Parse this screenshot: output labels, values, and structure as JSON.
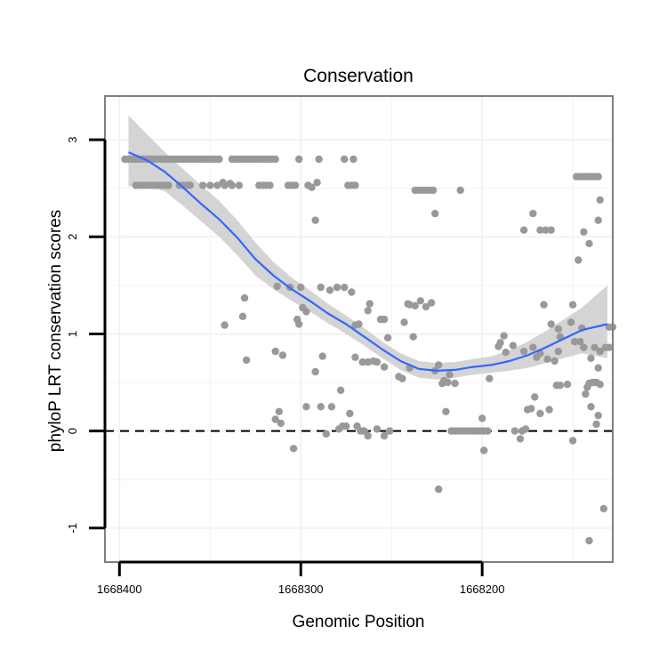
{
  "chart_data": {
    "type": "scatter",
    "title": "Conservation",
    "xlabel": "Genomic Position",
    "ylabel": "phyloP LRT conservation scores",
    "x_reversed": true,
    "xlim": [
      1668408,
      1668128
    ],
    "ylim": [
      -1.35,
      3.45
    ],
    "x_ticks": [
      1668400,
      1668300,
      1668200
    ],
    "y_ticks": [
      -1,
      0,
      1,
      2,
      3
    ],
    "x_tick_labels": [
      "1668400",
      "1668300",
      "1668200"
    ],
    "y_tick_labels": [
      "-1",
      "0",
      "1",
      "2",
      "3"
    ],
    "grid": true,
    "reference_line": {
      "y": 0,
      "style": "dashed"
    },
    "colors": {
      "points": "#999999",
      "smooth": "#3366ff",
      "ribbon": "#d4d4d4",
      "frame": "#7f7f7f",
      "grid": "#f2f2f2"
    },
    "point_series": {
      "name": "",
      "points": [
        [
          1668397,
          2.8
        ],
        [
          1668395,
          2.8
        ],
        [
          1668393,
          2.8
        ],
        [
          1668391,
          2.8
        ],
        [
          1668389,
          2.8
        ],
        [
          1668387,
          2.8
        ],
        [
          1668385,
          2.8
        ],
        [
          1668383,
          2.8
        ],
        [
          1668381,
          2.8
        ],
        [
          1668379,
          2.8
        ],
        [
          1668377,
          2.8
        ],
        [
          1668375,
          2.8
        ],
        [
          1668373,
          2.8
        ],
        [
          1668371,
          2.8
        ],
        [
          1668369,
          2.8
        ],
        [
          1668367,
          2.8
        ],
        [
          1668365,
          2.8
        ],
        [
          1668363,
          2.8
        ],
        [
          1668361,
          2.8
        ],
        [
          1668359,
          2.8
        ],
        [
          1668357,
          2.8
        ],
        [
          1668355,
          2.8
        ],
        [
          1668353,
          2.8
        ],
        [
          1668351,
          2.8
        ],
        [
          1668349,
          2.8
        ],
        [
          1668347,
          2.8
        ],
        [
          1668345,
          2.8
        ],
        [
          1668338,
          2.8
        ],
        [
          1668336,
          2.8
        ],
        [
          1668334,
          2.8
        ],
        [
          1668332,
          2.8
        ],
        [
          1668330,
          2.8
        ],
        [
          1668328,
          2.8
        ],
        [
          1668326,
          2.8
        ],
        [
          1668324,
          2.8
        ],
        [
          1668322,
          2.8
        ],
        [
          1668320,
          2.8
        ],
        [
          1668318,
          2.8
        ],
        [
          1668316,
          2.8
        ],
        [
          1668314,
          2.8
        ],
        [
          1668301,
          2.8
        ],
        [
          1668290,
          2.8
        ],
        [
          1668276,
          2.8
        ],
        [
          1668271,
          2.8
        ],
        [
          1668391,
          2.53
        ],
        [
          1668389,
          2.53
        ],
        [
          1668387,
          2.53
        ],
        [
          1668385,
          2.53
        ],
        [
          1668383,
          2.53
        ],
        [
          1668381,
          2.53
        ],
        [
          1668379,
          2.53
        ],
        [
          1668377,
          2.53
        ],
        [
          1668375,
          2.53
        ],
        [
          1668373,
          2.53
        ],
        [
          1668367,
          2.53
        ],
        [
          1668365,
          2.53
        ],
        [
          1668363,
          2.53
        ],
        [
          1668361,
          2.53
        ],
        [
          1668354,
          2.53
        ],
        [
          1668350,
          2.53
        ],
        [
          1668346,
          2.53
        ],
        [
          1668342,
          2.53
        ],
        [
          1668338,
          2.53
        ],
        [
          1668334,
          2.53
        ],
        [
          1668323,
          2.53
        ],
        [
          1668321,
          2.53
        ],
        [
          1668319,
          2.53
        ],
        [
          1668317,
          2.53
        ],
        [
          1668307,
          2.53
        ],
        [
          1668305,
          2.53
        ],
        [
          1668303,
          2.53
        ],
        [
          1668296,
          2.53
        ],
        [
          1668274,
          2.53
        ],
        [
          1668272,
          2.53
        ],
        [
          1668270,
          2.53
        ],
        [
          1668343,
          2.56
        ],
        [
          1668339,
          2.55
        ],
        [
          1668291,
          2.56
        ],
        [
          1668294,
          2.51
        ],
        [
          1668237,
          2.48
        ],
        [
          1668235,
          2.48
        ],
        [
          1668233,
          2.48
        ],
        [
          1668231,
          2.48
        ],
        [
          1668229,
          2.48
        ],
        [
          1668227,
          2.48
        ],
        [
          1668212,
          2.48
        ],
        [
          1668148,
          2.62
        ],
        [
          1668146,
          2.62
        ],
        [
          1668144,
          2.62
        ],
        [
          1668142,
          2.62
        ],
        [
          1668140,
          2.62
        ],
        [
          1668138,
          2.62
        ],
        [
          1668136,
          2.62
        ],
        [
          1668292,
          2.17
        ],
        [
          1668226,
          2.24
        ],
        [
          1668172,
          2.24
        ],
        [
          1668177,
          2.07
        ],
        [
          1668168,
          2.07
        ],
        [
          1668165,
          2.07
        ],
        [
          1668162,
          2.07
        ],
        [
          1668135,
          2.38
        ],
        [
          1668136,
          2.17
        ],
        [
          1668141,
          1.93
        ],
        [
          1668147,
          1.76
        ],
        [
          1668144,
          2.05
        ],
        [
          1668342,
          1.09
        ],
        [
          1668331,
          1.37
        ],
        [
          1668332,
          1.18
        ],
        [
          1668330,
          0.73
        ],
        [
          1668313,
          1.49
        ],
        [
          1668306,
          1.48
        ],
        [
          1668300,
          1.48
        ],
        [
          1668297,
          1.23
        ],
        [
          1668299,
          1.27
        ],
        [
          1668302,
          1.15
        ],
        [
          1668301,
          1.1
        ],
        [
          1668289,
          1.48
        ],
        [
          1668284,
          1.45
        ],
        [
          1668280,
          1.48
        ],
        [
          1668276,
          1.48
        ],
        [
          1668272,
          1.43
        ],
        [
          1668268,
          1.1
        ],
        [
          1668270,
          1.09
        ],
        [
          1668263,
          1.24
        ],
        [
          1668262,
          1.31
        ],
        [
          1668256,
          1.15
        ],
        [
          1668254,
          1.15
        ],
        [
          1668252,
          0.96
        ],
        [
          1668240,
          1.3
        ],
        [
          1668237,
          1.29
        ],
        [
          1668234,
          1.34
        ],
        [
          1668231,
          1.28
        ],
        [
          1668228,
          1.32
        ],
        [
          1668238,
          0.97
        ],
        [
          1668241,
          1.31
        ],
        [
          1668243,
          1.12
        ],
        [
          1668288,
          0.77
        ],
        [
          1668292,
          0.61
        ],
        [
          1668270,
          0.76
        ],
        [
          1668266,
          0.71
        ],
        [
          1668263,
          0.71
        ],
        [
          1668260,
          0.72
        ],
        [
          1668258,
          0.71
        ],
        [
          1668254,
          0.66
        ],
        [
          1668246,
          0.56
        ],
        [
          1668244,
          0.54
        ],
        [
          1668240,
          0.65
        ],
        [
          1668226,
          0.62
        ],
        [
          1668224,
          0.68
        ],
        [
          1668221,
          0.52
        ],
        [
          1668219,
          0.5
        ],
        [
          1668222,
          0.49
        ],
        [
          1668215,
          0.49
        ],
        [
          1668314,
          0.82
        ],
        [
          1668310,
          0.78
        ],
        [
          1668218,
          0.58
        ],
        [
          1668196,
          0.54
        ],
        [
          1668191,
          0.87
        ],
        [
          1668190,
          0.91
        ],
        [
          1668188,
          0.98
        ],
        [
          1668187,
          0.81
        ],
        [
          1668183,
          0.88
        ],
        [
          1668177,
          0.82
        ],
        [
          1668172,
          0.86
        ],
        [
          1668170,
          0.76
        ],
        [
          1668168,
          0.8
        ],
        [
          1668164,
          0.74
        ],
        [
          1668160,
          0.72
        ],
        [
          1668158,
          0.82
        ],
        [
          1668157,
          0.97
        ],
        [
          1668158,
          1.05
        ],
        [
          1668162,
          1.1
        ],
        [
          1668166,
          1.3
        ],
        [
          1668150,
          1.3
        ],
        [
          1668151,
          1.12
        ],
        [
          1668145,
          1.06
        ],
        [
          1668149,
          0.92
        ],
        [
          1668153,
          0.48
        ],
        [
          1668159,
          0.47
        ],
        [
          1668142,
          0.45
        ],
        [
          1668141,
          0.49
        ],
        [
          1668139,
          0.5
        ],
        [
          1668137,
          0.5
        ],
        [
          1668135,
          0.48
        ],
        [
          1668136,
          0.65
        ],
        [
          1668140,
          0.75
        ],
        [
          1668138,
          0.86
        ],
        [
          1668144,
          0.86
        ],
        [
          1668146,
          0.92
        ],
        [
          1668130,
          1.07
        ],
        [
          1668128,
          1.07
        ],
        [
          1668130,
          0.86
        ],
        [
          1668132,
          0.86
        ],
        [
          1668135,
          0.82
        ],
        [
          1668314,
          0.12
        ],
        [
          1668312,
          0.2
        ],
        [
          1668311,
          0.08
        ],
        [
          1668297,
          0.25
        ],
        [
          1668289,
          0.25
        ],
        [
          1668286,
          -0.03
        ],
        [
          1668283,
          0.25
        ],
        [
          1668279,
          0.02
        ],
        [
          1668278,
          0.42
        ],
        [
          1668277,
          0.05
        ],
        [
          1668275,
          0.05
        ],
        [
          1668273,
          0.18
        ],
        [
          1668269,
          0.05
        ],
        [
          1668267,
          0.0
        ],
        [
          1668265,
          0.0
        ],
        [
          1668263,
          -0.05
        ],
        [
          1668258,
          0.02
        ],
        [
          1668254,
          -0.05
        ],
        [
          1668251,
          0.0
        ],
        [
          1668220,
          0.2
        ],
        [
          1668200,
          0.13
        ],
        [
          1668199,
          -0.2
        ],
        [
          1668182,
          0.0
        ],
        [
          1668179,
          -0.08
        ],
        [
          1668178,
          0.0
        ],
        [
          1668176,
          0.02
        ],
        [
          1668175,
          0.22
        ],
        [
          1668173,
          0.23
        ],
        [
          1668171,
          0.35
        ],
        [
          1668168,
          0.18
        ],
        [
          1668163,
          0.22
        ],
        [
          1668157,
          0.47
        ],
        [
          1668150,
          -0.1
        ],
        [
          1668140,
          0.25
        ],
        [
          1668137,
          0.07
        ],
        [
          1668136,
          0.16
        ],
        [
          1668143,
          0.38
        ],
        [
          1668217,
          0.0
        ],
        [
          1668215,
          0.0
        ],
        [
          1668213,
          0.0
        ],
        [
          1668211,
          0.0
        ],
        [
          1668209,
          0.0
        ],
        [
          1668207,
          0.0
        ],
        [
          1668205,
          0.0
        ],
        [
          1668203,
          0.0
        ],
        [
          1668201,
          0.0
        ],
        [
          1668199,
          0.0
        ],
        [
          1668197,
          0.0
        ],
        [
          1668304,
          -0.18
        ],
        [
          1668224,
          -0.6
        ],
        [
          1668141,
          -1.13
        ],
        [
          1668133,
          -0.8
        ]
      ]
    },
    "smooth_series": {
      "name": "",
      "points": [
        [
          1668395,
          2.87
        ],
        [
          1668385,
          2.79
        ],
        [
          1668375,
          2.67
        ],
        [
          1668365,
          2.51
        ],
        [
          1668355,
          2.34
        ],
        [
          1668345,
          2.18
        ],
        [
          1668335,
          1.99
        ],
        [
          1668325,
          1.77
        ],
        [
          1668315,
          1.6
        ],
        [
          1668305,
          1.46
        ],
        [
          1668295,
          1.34
        ],
        [
          1668285,
          1.21
        ],
        [
          1668275,
          1.1
        ],
        [
          1668265,
          0.97
        ],
        [
          1668255,
          0.84
        ],
        [
          1668245,
          0.72
        ],
        [
          1668235,
          0.64
        ],
        [
          1668225,
          0.62
        ],
        [
          1668215,
          0.63
        ],
        [
          1668205,
          0.66
        ],
        [
          1668195,
          0.68
        ],
        [
          1668185,
          0.72
        ],
        [
          1668175,
          0.78
        ],
        [
          1668165,
          0.86
        ],
        [
          1668155,
          0.95
        ],
        [
          1668145,
          1.04
        ],
        [
          1668131,
          1.1
        ]
      ],
      "ci_upper": [
        3.25,
        3.06,
        2.87,
        2.7,
        2.53,
        2.37,
        2.17,
        1.94,
        1.74,
        1.58,
        1.45,
        1.31,
        1.19,
        1.06,
        0.92,
        0.8,
        0.72,
        0.7,
        0.71,
        0.74,
        0.77,
        0.83,
        0.92,
        1.03,
        1.15,
        1.27,
        1.5
      ],
      "ci_lower": [
        2.52,
        2.53,
        2.47,
        2.32,
        2.16,
        2.0,
        1.81,
        1.6,
        1.46,
        1.34,
        1.23,
        1.11,
        1.0,
        0.88,
        0.75,
        0.63,
        0.55,
        0.53,
        0.55,
        0.58,
        0.6,
        0.62,
        0.65,
        0.7,
        0.75,
        0.8,
        0.75
      ]
    }
  }
}
